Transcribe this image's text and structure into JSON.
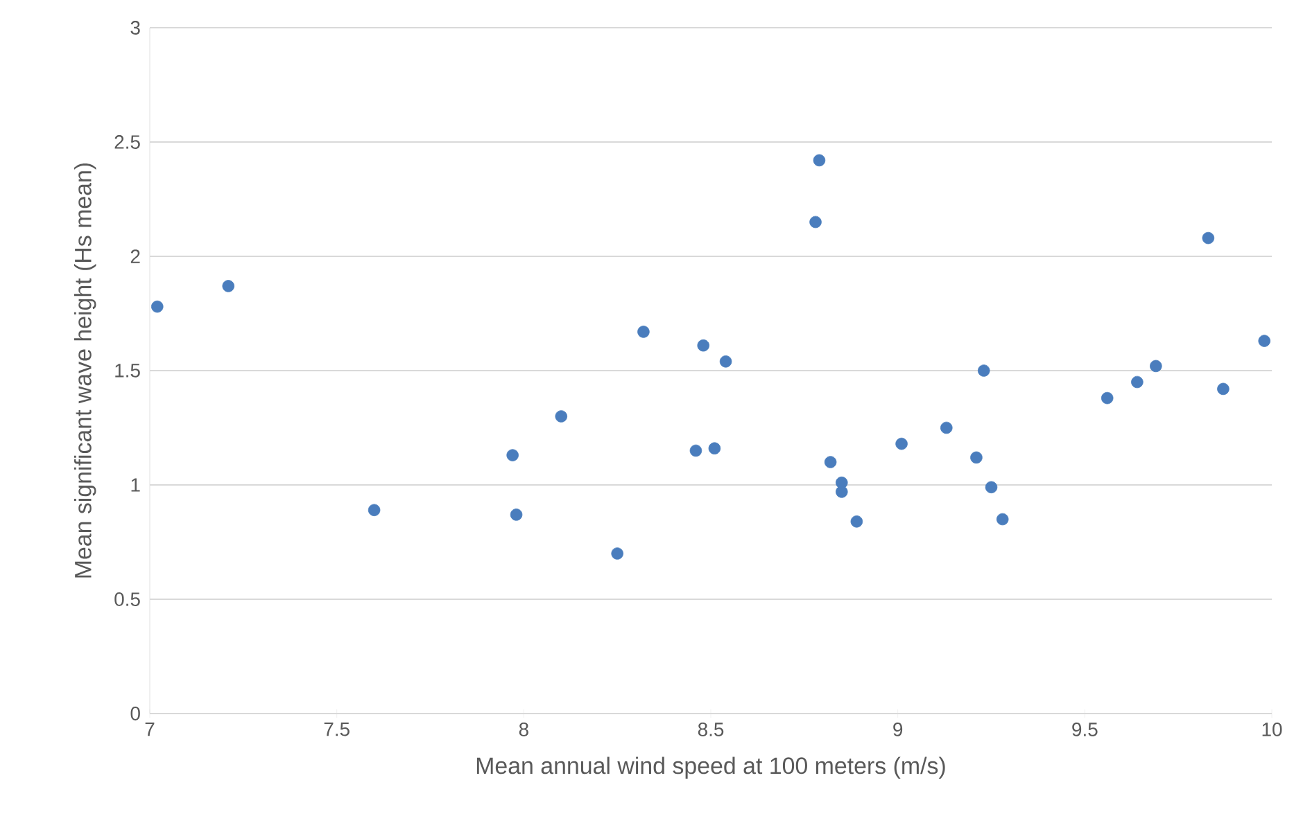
{
  "chart_data": {
    "type": "scatter",
    "xlabel": "Mean annual wind speed at 100 meters (m/s)",
    "ylabel": "Mean significant wave height (Hs mean)",
    "xlim": [
      7,
      10
    ],
    "ylim": [
      0,
      3
    ],
    "xticks": [
      7,
      7.5,
      8,
      8.5,
      9,
      9.5,
      10
    ],
    "yticks": [
      0,
      0.5,
      1,
      1.5,
      2,
      2.5,
      3
    ],
    "grid": "y",
    "marker": "circle",
    "series": [
      {
        "color": "#4a7dbd",
        "x": [
          7.02,
          7.21,
          7.6,
          7.97,
          7.98,
          8.1,
          8.25,
          8.32,
          8.46,
          8.48,
          8.51,
          8.54,
          8.78,
          8.79,
          8.82,
          8.85,
          8.85,
          8.89,
          9.01,
          9.13,
          9.21,
          9.23,
          9.25,
          9.28,
          9.56,
          9.64,
          9.69,
          9.83,
          9.87,
          9.98
        ],
        "values": [
          1.78,
          1.87,
          0.89,
          1.13,
          0.87,
          1.3,
          0.7,
          1.67,
          1.15,
          1.61,
          1.16,
          1.54,
          2.15,
          2.42,
          1.1,
          0.97,
          1.01,
          0.84,
          1.18,
          1.25,
          1.12,
          1.5,
          0.99,
          0.85,
          1.38,
          1.45,
          1.52,
          2.08,
          1.42,
          1.63
        ]
      }
    ]
  }
}
